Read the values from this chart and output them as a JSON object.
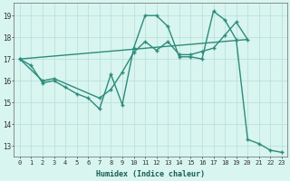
{
  "line1_x": [
    0,
    1,
    2,
    3,
    4,
    5,
    6,
    7,
    8,
    9,
    10,
    11,
    12,
    13,
    14,
    15,
    16,
    17,
    18,
    19,
    20,
    21,
    22,
    23
  ],
  "line1_y": [
    17.0,
    16.7,
    15.9,
    16.0,
    15.7,
    15.4,
    15.2,
    14.7,
    16.3,
    14.9,
    17.5,
    19.0,
    19.0,
    18.5,
    17.1,
    17.1,
    17.0,
    19.2,
    18.8,
    17.9,
    13.3,
    13.1,
    12.8,
    12.7
  ],
  "line2_x": [
    0,
    2,
    3,
    7,
    8,
    9,
    10,
    11,
    12,
    13,
    14,
    15,
    16,
    17,
    18,
    19,
    20
  ],
  "line2_y": [
    17.0,
    16.0,
    16.1,
    15.2,
    15.6,
    16.4,
    17.3,
    17.8,
    17.4,
    17.8,
    17.2,
    17.2,
    17.35,
    17.5,
    18.1,
    18.7,
    17.9
  ],
  "line3_x": [
    0,
    20
  ],
  "line3_y": [
    17.0,
    17.9
  ],
  "color": "#2e8b7a",
  "bg_color": "#d8f5f0",
  "grid_color": "#b8ddd8",
  "xlabel": "Humidex (Indice chaleur)",
  "xlim": [
    -0.5,
    23.5
  ],
  "ylim": [
    12.5,
    19.6
  ],
  "yticks": [
    13,
    14,
    15,
    16,
    17,
    18,
    19
  ],
  "xticks": [
    0,
    1,
    2,
    3,
    4,
    5,
    6,
    7,
    8,
    9,
    10,
    11,
    12,
    13,
    14,
    15,
    16,
    17,
    18,
    19,
    20,
    21,
    22,
    23
  ],
  "marker": "+",
  "linewidth": 1.0,
  "markersize": 3.5
}
